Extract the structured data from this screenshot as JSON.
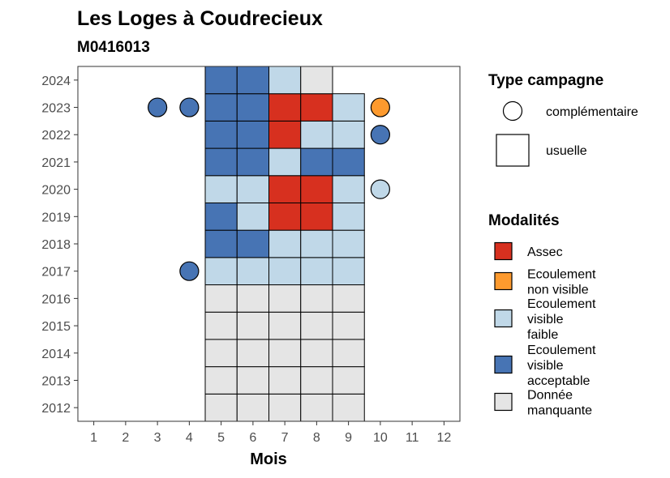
{
  "chart_data": {
    "type": "heatmap",
    "title": "Les Loges à Coudrecieux",
    "subtitle": "M0416013",
    "xlabel": "Mois",
    "ylabel": "",
    "x_ticks": [
      "1",
      "2",
      "3",
      "4",
      "5",
      "6",
      "7",
      "8",
      "9",
      "10",
      "11",
      "12"
    ],
    "y_ticks": [
      "2012",
      "2013",
      "2014",
      "2015",
      "2016",
      "2017",
      "2018",
      "2019",
      "2020",
      "2021",
      "2022",
      "2023",
      "2024"
    ],
    "xlim": [
      0.5,
      12.5
    ],
    "ylim": [
      2011.5,
      2024.5
    ],
    "grid": false,
    "legend_position": "right",
    "colors": {
      "assec": "#d7301f",
      "non_visible": "#fd9a2e",
      "faible": "#c0d8e8",
      "acceptable": "#4774b4",
      "manquante": "#e5e5e5"
    },
    "usuelle": [
      {
        "year": 2012,
        "months": [
          "manquante",
          "manquante",
          "manquante",
          "manquante",
          "manquante"
        ]
      },
      {
        "year": 2013,
        "months": [
          "manquante",
          "manquante",
          "manquante",
          "manquante",
          "manquante"
        ]
      },
      {
        "year": 2014,
        "months": [
          "manquante",
          "manquante",
          "manquante",
          "manquante",
          "manquante"
        ]
      },
      {
        "year": 2015,
        "months": [
          "manquante",
          "manquante",
          "manquante",
          "manquante",
          "manquante"
        ]
      },
      {
        "year": 2016,
        "months": [
          "manquante",
          "manquante",
          "manquante",
          "manquante",
          "manquante"
        ]
      },
      {
        "year": 2017,
        "months": [
          "faible",
          "faible",
          "faible",
          "faible",
          "faible"
        ]
      },
      {
        "year": 2018,
        "months": [
          "acceptable",
          "acceptable",
          "faible",
          "faible",
          "faible"
        ]
      },
      {
        "year": 2019,
        "months": [
          "acceptable",
          "faible",
          "assec",
          "assec",
          "faible"
        ]
      },
      {
        "year": 2020,
        "months": [
          "faible",
          "faible",
          "assec",
          "assec",
          "faible"
        ]
      },
      {
        "year": 2021,
        "months": [
          "acceptable",
          "acceptable",
          "faible",
          "acceptable",
          "acceptable"
        ]
      },
      {
        "year": 2022,
        "months": [
          "acceptable",
          "acceptable",
          "assec",
          "faible",
          "faible"
        ]
      },
      {
        "year": 2023,
        "months": [
          "acceptable",
          "acceptable",
          "assec",
          "assec",
          "faible"
        ]
      },
      {
        "year": 2024,
        "months": [
          "acceptable",
          "acceptable",
          "faible",
          "manquante"
        ]
      }
    ],
    "usuelle_first_month": 5,
    "complementaire": [
      {
        "year": 2017,
        "month": 4,
        "modalite": "acceptable"
      },
      {
        "year": 2020,
        "month": 10,
        "modalite": "faible"
      },
      {
        "year": 2022,
        "month": 10,
        "modalite": "acceptable"
      },
      {
        "year": 2023,
        "month": 3,
        "modalite": "acceptable"
      },
      {
        "year": 2023,
        "month": 4,
        "modalite": "acceptable"
      },
      {
        "year": 2023,
        "month": 10,
        "modalite": "non_visible"
      }
    ],
    "legend_campagne": {
      "title": "Type campagne",
      "items": [
        "complémentaire",
        "usuelle"
      ]
    },
    "legend_modalites": {
      "title": "Modalités",
      "items": [
        {
          "key": "assec",
          "lines": [
            "Assec"
          ]
        },
        {
          "key": "non_visible",
          "lines": [
            "Ecoulement",
            "non visible"
          ]
        },
        {
          "key": "faible",
          "lines": [
            "Ecoulement",
            "visible",
            "faible"
          ]
        },
        {
          "key": "acceptable",
          "lines": [
            "Ecoulement",
            "visible",
            "acceptable"
          ]
        },
        {
          "key": "manquante",
          "lines": [
            "Donnée",
            "manquante"
          ]
        }
      ]
    }
  }
}
